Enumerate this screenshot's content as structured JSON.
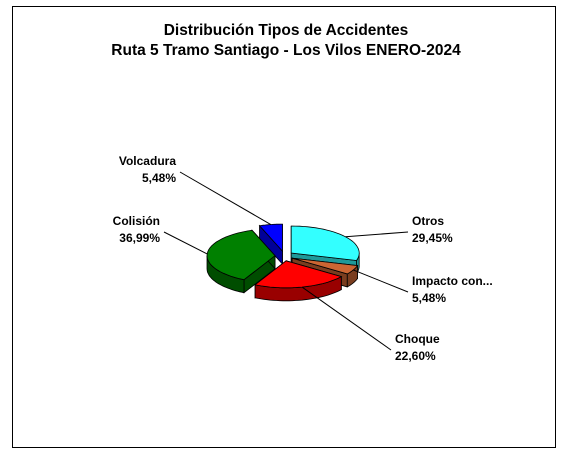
{
  "chart_data": {
    "type": "pie3d",
    "title": "Distribución Tipos de Accidentes",
    "subtitle": "Ruta 5 Tramo Santiago - Los Vilos ENERO-2024",
    "categories": [
      "Otros",
      "Impacto  con...",
      "Choque",
      "Colisión",
      "Volcadura"
    ],
    "values": [
      29.45,
      5.48,
      22.6,
      36.99,
      5.48
    ],
    "value_labels": [
      "29,45%",
      "5,48%",
      "22,60%",
      "36,99%",
      "5,48%"
    ],
    "colors": [
      "#33ffff",
      "#cc6633",
      "#ff0000",
      "#008000",
      "#0000ff"
    ]
  }
}
